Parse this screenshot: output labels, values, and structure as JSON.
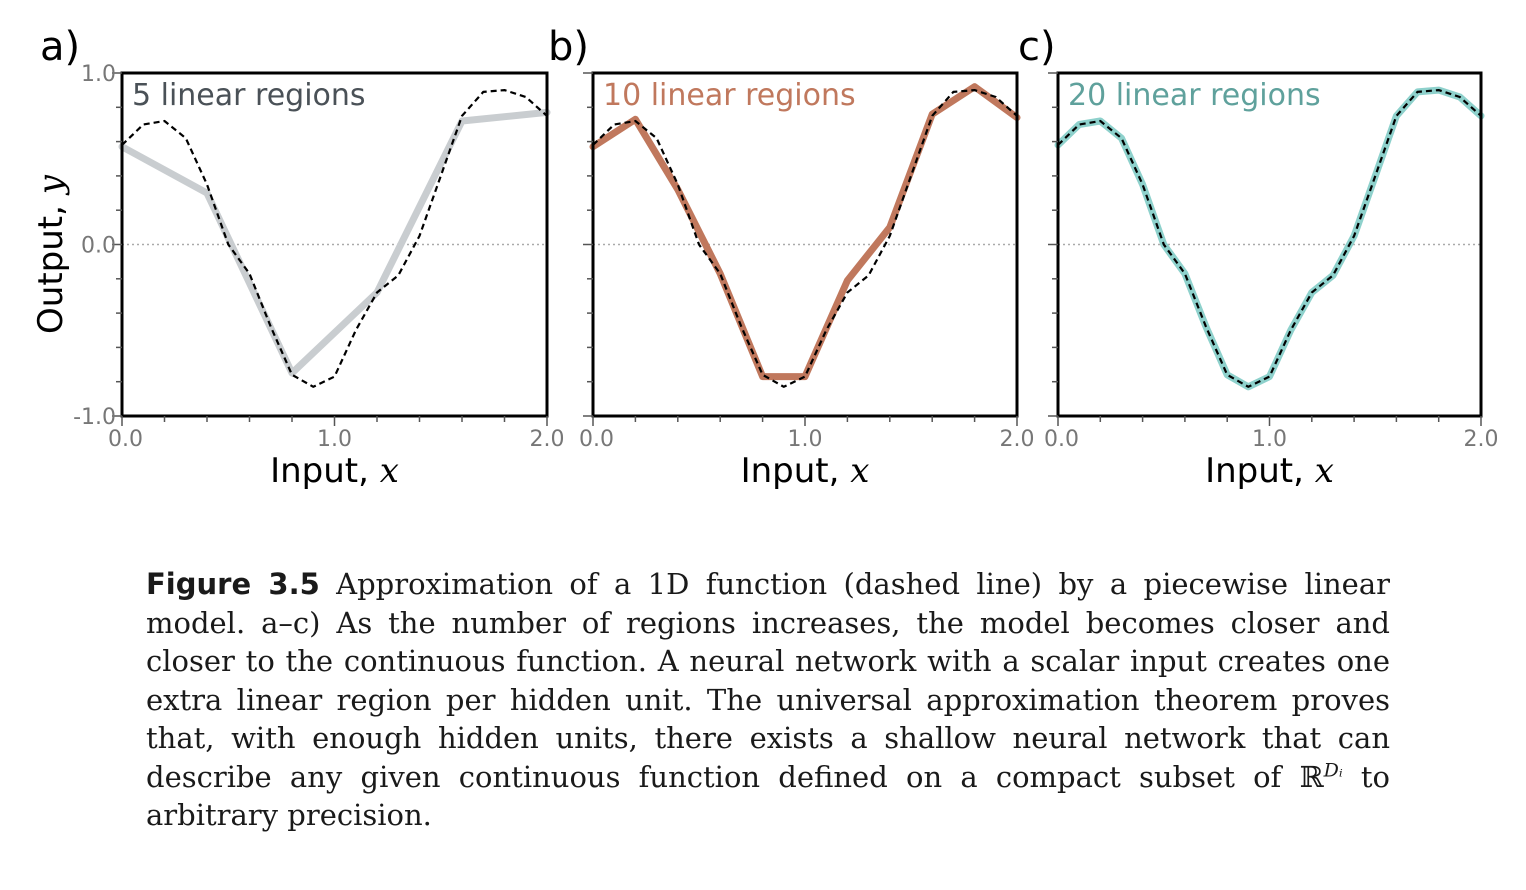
{
  "chart_data": [
    {
      "type": "line",
      "panel_label": "a)",
      "annotation": "5 linear regions",
      "annotation_color": "#4a5157",
      "ylabel": "Output, y",
      "xlabel": "Input, x",
      "xlim": [
        0.0,
        2.0
      ],
      "ylim": [
        -1.0,
        1.0
      ],
      "xticks": [
        0.0,
        1.0,
        2.0
      ],
      "xtick_labels": [
        "0.0",
        "1.0",
        "2.0"
      ],
      "yticks": [
        -1.0,
        0.0,
        1.0
      ],
      "ytick_labels": [
        "-1.0",
        "0.0",
        "1.0"
      ],
      "zero_line": true,
      "series": [
        {
          "style": "solid",
          "color": "#c9cdd0",
          "x": [
            0.0,
            0.4,
            0.8,
            1.2,
            1.6,
            2.0
          ],
          "y": [
            0.57,
            0.3,
            -0.75,
            -0.28,
            0.72,
            0.77
          ]
        },
        {
          "style": "dashed",
          "color": "#000000",
          "x": [
            0.0,
            0.1,
            0.2,
            0.3,
            0.4,
            0.5,
            0.6,
            0.7,
            0.8,
            0.9,
            1.0,
            1.1,
            1.2,
            1.3,
            1.4,
            1.5,
            1.6,
            1.7,
            1.8,
            1.9,
            2.0
          ],
          "y": [
            0.58,
            0.7,
            0.72,
            0.62,
            0.35,
            0.0,
            -0.17,
            -0.48,
            -0.76,
            -0.83,
            -0.77,
            -0.5,
            -0.28,
            -0.18,
            0.05,
            0.4,
            0.75,
            0.89,
            0.9,
            0.86,
            0.75
          ]
        }
      ]
    },
    {
      "type": "line",
      "panel_label": "b)",
      "annotation": "10 linear regions",
      "annotation_color": "#c0785d",
      "ylabel": "",
      "xlabel": "Input, x",
      "xlim": [
        0.0,
        2.0
      ],
      "ylim": [
        -1.0,
        1.0
      ],
      "xticks": [
        0.0,
        1.0,
        2.0
      ],
      "xtick_labels": [
        "0.0",
        "1.0",
        "2.0"
      ],
      "yticks": [
        -1.0,
        0.0,
        1.0
      ],
      "ytick_labels": [
        "",
        "",
        ""
      ],
      "zero_line": true,
      "series": [
        {
          "style": "solid",
          "color": "#c0785d",
          "x": [
            0.0,
            0.2,
            0.4,
            0.6,
            0.8,
            1.0,
            1.2,
            1.4,
            1.6,
            1.8,
            2.0
          ],
          "y": [
            0.57,
            0.73,
            0.32,
            -0.17,
            -0.77,
            -0.77,
            -0.21,
            0.1,
            0.76,
            0.92,
            0.74
          ]
        },
        {
          "style": "dashed",
          "color": "#000000",
          "x": [
            0.0,
            0.1,
            0.2,
            0.3,
            0.4,
            0.5,
            0.6,
            0.7,
            0.8,
            0.9,
            1.0,
            1.1,
            1.2,
            1.3,
            1.4,
            1.5,
            1.6,
            1.7,
            1.8,
            1.9,
            2.0
          ],
          "y": [
            0.58,
            0.7,
            0.72,
            0.62,
            0.35,
            0.0,
            -0.17,
            -0.48,
            -0.76,
            -0.83,
            -0.77,
            -0.5,
            -0.28,
            -0.18,
            0.05,
            0.4,
            0.75,
            0.89,
            0.9,
            0.86,
            0.75
          ]
        }
      ]
    },
    {
      "type": "line",
      "panel_label": "c)",
      "annotation": "20 linear regions",
      "annotation_color": "#5fa19c",
      "ylabel": "",
      "xlabel": "Input, x",
      "xlim": [
        0.0,
        2.0
      ],
      "ylim": [
        -1.0,
        1.0
      ],
      "xticks": [
        0.0,
        1.0,
        2.0
      ],
      "xtick_labels": [
        "0.0",
        "1.0",
        "2.0"
      ],
      "yticks": [
        -1.0,
        0.0,
        1.0
      ],
      "ytick_labels": [
        "",
        "",
        ""
      ],
      "zero_line": true,
      "series": [
        {
          "style": "solid",
          "color": "#8ed1cc",
          "x": [
            0.0,
            0.1,
            0.2,
            0.3,
            0.4,
            0.5,
            0.6,
            0.7,
            0.8,
            0.9,
            1.0,
            1.1,
            1.2,
            1.3,
            1.4,
            1.5,
            1.6,
            1.7,
            1.8,
            1.9,
            2.0
          ],
          "y": [
            0.58,
            0.7,
            0.72,
            0.62,
            0.35,
            0.0,
            -0.17,
            -0.48,
            -0.76,
            -0.83,
            -0.77,
            -0.5,
            -0.28,
            -0.18,
            0.05,
            0.4,
            0.75,
            0.89,
            0.9,
            0.86,
            0.75
          ]
        },
        {
          "style": "dashed",
          "color": "#000000",
          "x": [
            0.0,
            0.1,
            0.2,
            0.3,
            0.4,
            0.5,
            0.6,
            0.7,
            0.8,
            0.9,
            1.0,
            1.1,
            1.2,
            1.3,
            1.4,
            1.5,
            1.6,
            1.7,
            1.8,
            1.9,
            2.0
          ],
          "y": [
            0.58,
            0.7,
            0.72,
            0.62,
            0.35,
            0.0,
            -0.17,
            -0.48,
            -0.76,
            -0.83,
            -0.77,
            -0.5,
            -0.28,
            -0.18,
            0.05,
            0.4,
            0.75,
            0.89,
            0.9,
            0.86,
            0.75
          ]
        }
      ]
    }
  ],
  "caption": {
    "label": "Figure 3.5",
    "text_part1": " Approximation of a 1D function (dashed line) by a piecewise linear model.  a–c) As the number of regions increases, the model becomes closer and closer to the continuous function.  A neural network with a scalar input creates one extra linear region per hidden unit.  The universal approximation theorem proves that, with enough hidden units, there exists a shallow neural network that can describe any given continuous function defined on a compact subset of ",
    "set_symbol": "ℝ",
    "superscript": "Dᵢ",
    "text_part2": " to arbitrary precision."
  }
}
